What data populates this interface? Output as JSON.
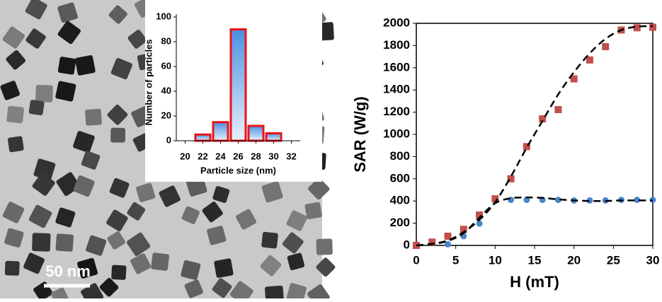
{
  "image": {
    "scale_bar": "50 nm"
  },
  "chart_data": [
    {
      "type": "histogram",
      "xlabel": "Particle size (nm)",
      "ylabel": "Number of particles",
      "bins": [
        21,
        23,
        25,
        27,
        29,
        31
      ],
      "counts": [
        5,
        15,
        90,
        12,
        6
      ],
      "color": "#4a90e2",
      "edgecolor": "#e8141b",
      "xlim": [
        19,
        33
      ],
      "xticks": [
        20,
        22,
        24,
        26,
        28,
        30,
        32
      ],
      "ylim": [
        0,
        100
      ],
      "yticks": [
        0,
        20,
        40,
        60,
        80,
        100
      ]
    },
    {
      "type": "scatter",
      "xlabel": "H (mT)",
      "ylabel": "SAR (W/g)",
      "xlim": [
        0,
        30
      ],
      "xticks": [
        0,
        5,
        10,
        15,
        20,
        25,
        30
      ],
      "ylim": [
        0,
        2000
      ],
      "yticks": [
        0,
        200,
        400,
        600,
        800,
        1000,
        1200,
        1400,
        1600,
        1800,
        2000
      ],
      "series": [
        {
          "type": "scatter",
          "marker": "circle",
          "color": "#4a86c8",
          "x": [
            0,
            4,
            6,
            8,
            12,
            14,
            16,
            18,
            20,
            22,
            24,
            26,
            28,
            30
          ],
          "values": [
            0,
            10,
            83,
            197,
            410,
            410,
            410,
            410,
            405,
            405,
            405,
            410,
            410,
            410
          ]
        },
        {
          "type": "scatter",
          "marker": "square",
          "color": "#c0504d",
          "x": [
            0,
            2,
            4,
            6,
            8,
            10,
            12,
            14,
            16,
            18,
            20,
            22,
            24,
            26,
            28,
            30
          ],
          "values": [
            0,
            30,
            83,
            145,
            274,
            420,
            600,
            890,
            1140,
            1223,
            1500,
            1670,
            1790,
            1940,
            1960,
            1965
          ]
        },
        {
          "type": "line",
          "style": "dashed",
          "color": "#000000",
          "x": [
            0,
            2,
            4,
            6,
            8,
            10,
            12,
            14,
            16,
            18,
            20,
            22,
            24,
            26,
            28,
            30
          ],
          "values": [
            0,
            12,
            40,
            110,
            250,
            380,
            425,
            432,
            428,
            415,
            405,
            400,
            400,
            405,
            405,
            405
          ]
        },
        {
          "type": "line",
          "style": "dashed",
          "color": "#000000",
          "x": [
            0,
            2,
            4,
            6,
            8,
            10,
            12,
            14,
            16,
            18,
            20,
            22,
            24,
            26,
            28,
            30
          ],
          "values": [
            0,
            15,
            45,
            120,
            230,
            390,
            620,
            880,
            1120,
            1360,
            1560,
            1730,
            1860,
            1940,
            1970,
            1975
          ]
        }
      ]
    }
  ]
}
